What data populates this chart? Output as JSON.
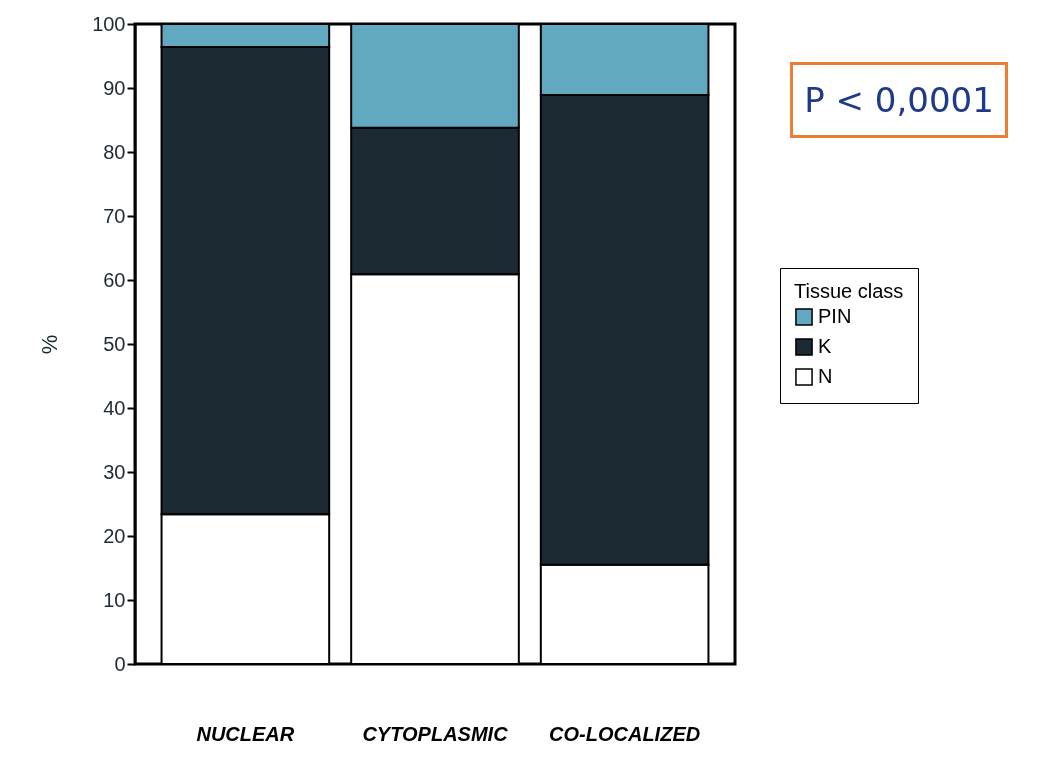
{
  "chart_data": {
    "type": "bar",
    "stacked": true,
    "categories": [
      "NUCLEAR",
      "CYTOPLASMIC",
      "CO-LOCALIZED"
    ],
    "series": [
      {
        "name": "N",
        "color": "#ffffff",
        "values": [
          23.4,
          60.9,
          15.5
        ]
      },
      {
        "name": "K",
        "color": "#1c2b33",
        "values": [
          73.0,
          22.9,
          73.4
        ]
      },
      {
        "name": "PIN",
        "color": "#62a8c0",
        "values": [
          3.6,
          16.2,
          11.1
        ]
      }
    ],
    "ylabel": "%",
    "ylim": [
      0,
      100
    ],
    "yticks": [
      0,
      10,
      20,
      30,
      40,
      50,
      60,
      70,
      80,
      90,
      100
    ],
    "legend": "right",
    "legend_title": "Tissue class",
    "grid": false,
    "annotations": [
      "P < 0,0001"
    ]
  }
}
